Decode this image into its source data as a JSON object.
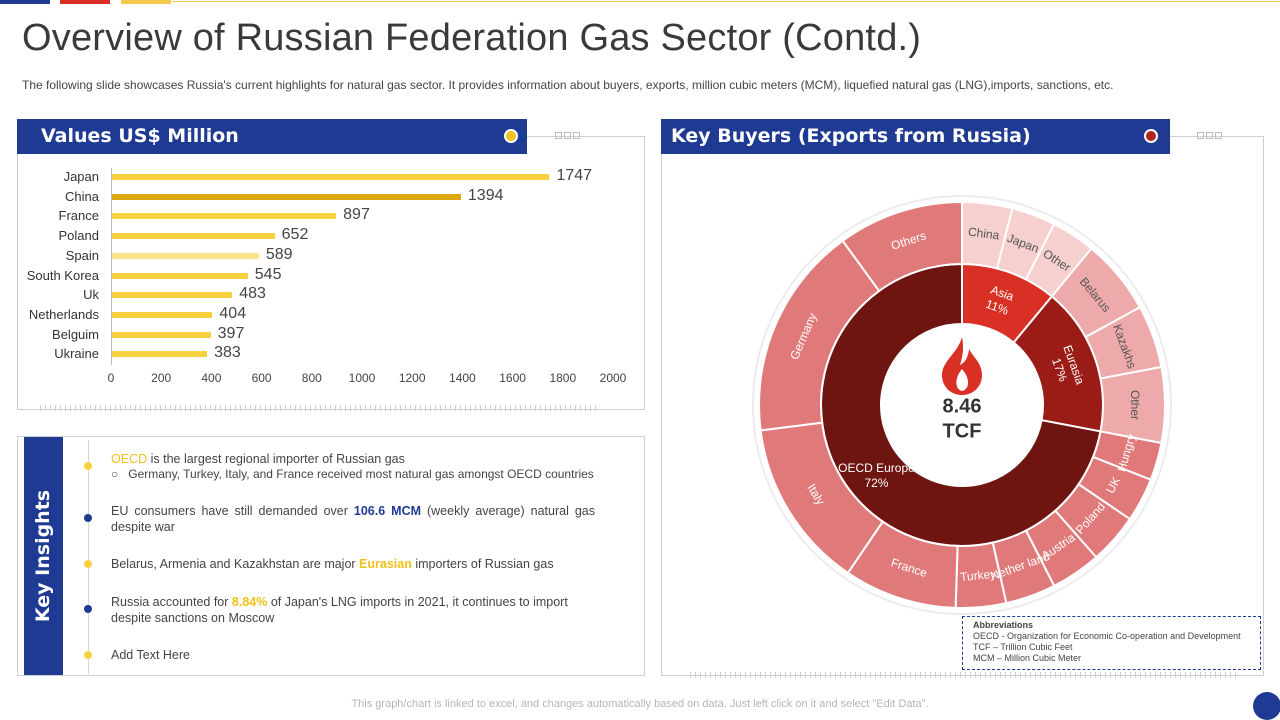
{
  "title": "Overview of Russian Federation Gas Sector (Contd.)",
  "subtitle": "The following slide showcases Russia's current highlights for natural gas sector. It provides information  about buyers, exports, million cubic meters (MCM), liquefied natural gas (LNG),imports,  sanctions, etc.",
  "colors": {
    "brand_blue": "#1f3a93",
    "accent_red": "#d93025",
    "accent_yellow": "#f2c11b",
    "bar_default": "#f7d23e",
    "bar_dark": "#d9a90f",
    "bar_light": "#fae58a"
  },
  "left_panel": {
    "header": "Values US$ Million"
  },
  "right_panel": {
    "header": "Key Buyers (Exports from Russia)"
  },
  "chart_data": [
    {
      "type": "bar",
      "orientation": "horizontal",
      "title": "Values US$ Million",
      "categories": [
        "Japan",
        "China",
        "France",
        "Poland",
        "Spain",
        "South Korea",
        "Uk",
        "Netherlands",
        "Belguim",
        "Ukraine"
      ],
      "values": [
        1747,
        1394,
        897,
        652,
        589,
        545,
        483,
        404,
        397,
        383
      ],
      "xlim": [
        0,
        2000
      ],
      "xticks": [
        0,
        200,
        400,
        600,
        800,
        1000,
        1200,
        1400,
        1600,
        1800,
        2000
      ],
      "grid": false
    },
    {
      "type": "pie",
      "subtype": "sunburst",
      "title": "Key Buyers (Exports from Russia)",
      "center_value": "8.46",
      "center_unit": "TCF",
      "inner": [
        {
          "name": "Asia",
          "label": "11%",
          "value": 11
        },
        {
          "name": "Eurasia",
          "label": "17%",
          "value": 17
        },
        {
          "name": "OECD Europe",
          "label": "72%",
          "value": 72
        }
      ],
      "outer": [
        {
          "name": "China",
          "parent": "Asia",
          "value": 4
        },
        {
          "name": "Japan",
          "parent": "Asia",
          "value": 3.5
        },
        {
          "name": "Other",
          "parent": "Asia",
          "value": 3.5
        },
        {
          "name": "Belarus",
          "parent": "Eurasia",
          "value": 6
        },
        {
          "name": "Kazakhs",
          "parent": "Eurasia",
          "value": 5
        },
        {
          "name": "Other",
          "parent": "Eurasia",
          "value": 6
        },
        {
          "name": "Hungry",
          "parent": "OECD Europe",
          "value": 3
        },
        {
          "name": "UK",
          "parent": "OECD Europe",
          "value": 3.5
        },
        {
          "name": "Poland",
          "parent": "OECD Europe",
          "value": 4
        },
        {
          "name": "Austria",
          "parent": "OECD Europe",
          "value": 4
        },
        {
          "name": "Nether land",
          "parent": "OECD Europe",
          "value": 4
        },
        {
          "name": "Turkey",
          "parent": "OECD Europe",
          "value": 4
        },
        {
          "name": "France",
          "parent": "OECD Europe",
          "value": 9
        },
        {
          "name": "Italy",
          "parent": "OECD Europe",
          "value": 13.5
        },
        {
          "name": "Germany",
          "parent": "OECD Europe",
          "value": 17
        },
        {
          "name": "Others",
          "parent": "OECD Europe",
          "value": 10
        }
      ]
    }
  ],
  "insights": {
    "heading": "Key Insights",
    "items": [
      {
        "lead_hl": "OECD",
        "text": " is the largest regional importer of Russian gas",
        "sub": "Germany, Turkey, Italy, and France received most natural gas amongst OECD countries"
      },
      {
        "pre": "EU consumers have still demanded over ",
        "hl": "106.6 MCM",
        "post": " (weekly average)  natural gas despite war"
      },
      {
        "pre": "Belarus, Armenia and Kazakhstan are major ",
        "hl": "Eurasian",
        "post": " importers of Russian gas"
      },
      {
        "pre": "Russia accounted for ",
        "hl": "8.84%",
        "post": " of Japan's LNG imports in 2021, it continues to import despite sanctions on Moscow"
      },
      {
        "text": "Add Text Here"
      }
    ]
  },
  "abbreviations": {
    "heading": "Abbreviations",
    "lines": [
      "OECD - Organization  for Economic Co-operation and Development",
      "TCF – Trillion Cubic Feet",
      "MCM – Million Cubic Meter"
    ]
  },
  "footer": "This graph/chart is linked to excel, and changes automatically based on data. Just left click on it and select \"Edit Data\"."
}
